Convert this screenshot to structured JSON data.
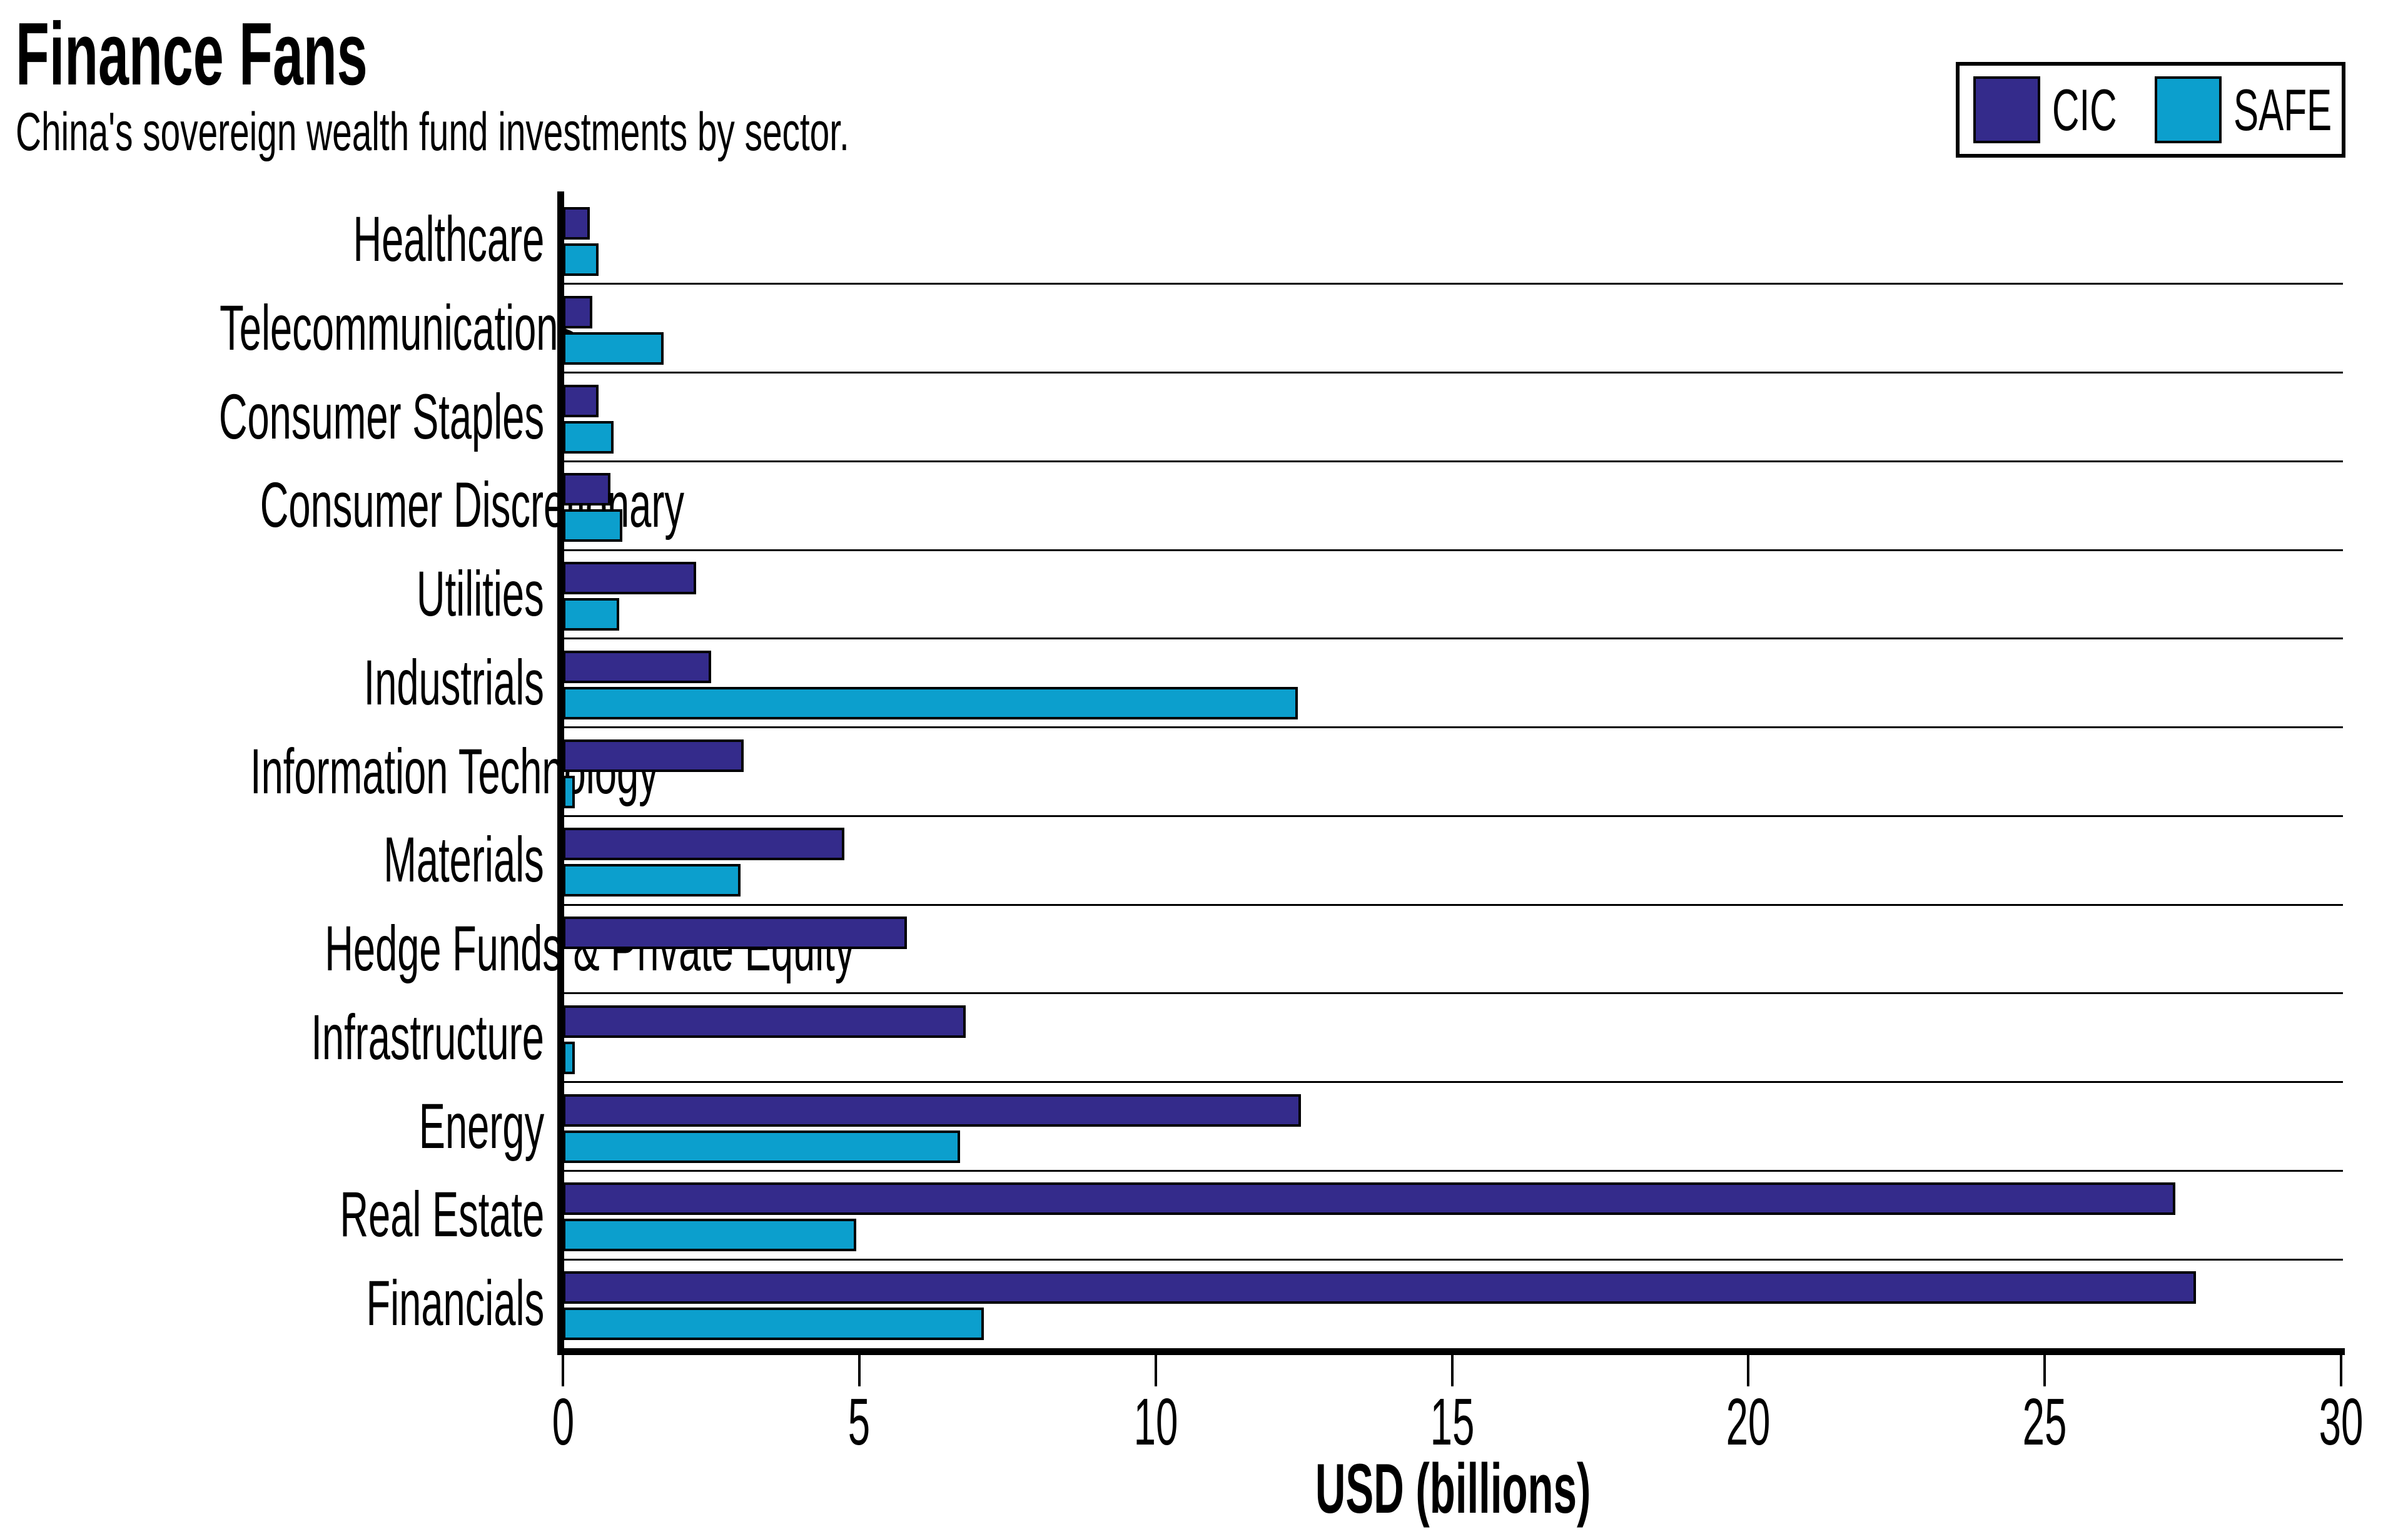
{
  "chart_data": {
    "type": "bar",
    "orientation": "horizontal",
    "title": "Finance Fans",
    "subtitle": "China's sovereign wealth fund investments by sector.",
    "xlabel": "USD (billions)",
    "xlim": [
      0,
      30
    ],
    "xticks": [
      0,
      5,
      10,
      15,
      20,
      25,
      30
    ],
    "grid": "horizontal category separator lines",
    "legend_position": "top-right",
    "bar_border_color": "#000000",
    "background_color": "#ffffff",
    "categories_top_to_bottom": [
      "Healthcare",
      "Telecommunications",
      "Consumer Staples",
      "Consumer Discretionary",
      "Utilities",
      "Industrials",
      "Information Technology",
      "Materials",
      "Hedge Funds & Private Equity",
      "Infrastructure",
      "Energy",
      "Real Estate",
      "Financials"
    ],
    "series": [
      {
        "name": "CIC",
        "color": "#342B8B",
        "values": [
          0.45,
          0.5,
          0.6,
          0.8,
          2.25,
          2.5,
          3.05,
          4.75,
          5.8,
          6.8,
          12.45,
          27.2,
          27.55
        ]
      },
      {
        "name": "SAFE",
        "color": "#0C9FCD",
        "values": [
          0.6,
          1.7,
          0.85,
          1.0,
          0.95,
          12.4,
          0.2,
          3.0,
          0,
          0.2,
          6.7,
          4.95,
          7.1
        ]
      }
    ]
  }
}
